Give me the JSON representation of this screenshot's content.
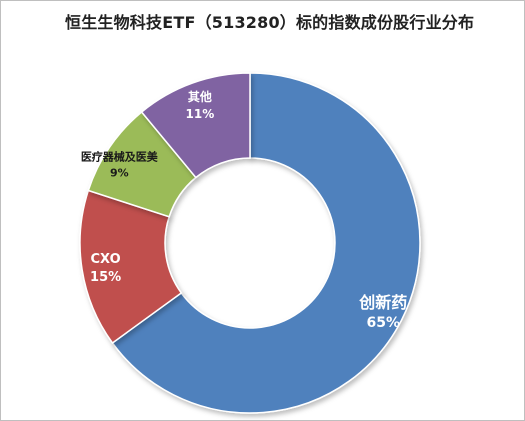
{
  "chart_data": {
    "type": "pie",
    "title": "恒生生物科技ETF（513280）标的指数成份股行业分布",
    "donut": true,
    "legend": "none",
    "slices": [
      {
        "label": "创新药",
        "value": 65,
        "value_label": "65%",
        "color": "#4f81bd",
        "label_color": "#ffffff"
      },
      {
        "label": "CXO",
        "value": 15,
        "value_label": "15%",
        "color": "#c0504d",
        "label_color": "#ffffff"
      },
      {
        "label": "医疗器械及医美",
        "value": 9,
        "value_label": "9%",
        "color": "#9bbb59",
        "label_color": "#1a1a1a"
      },
      {
        "label": "其他",
        "value": 11,
        "value_label": "11%",
        "color": "#8064a2",
        "label_color": "#ffffff"
      }
    ]
  }
}
